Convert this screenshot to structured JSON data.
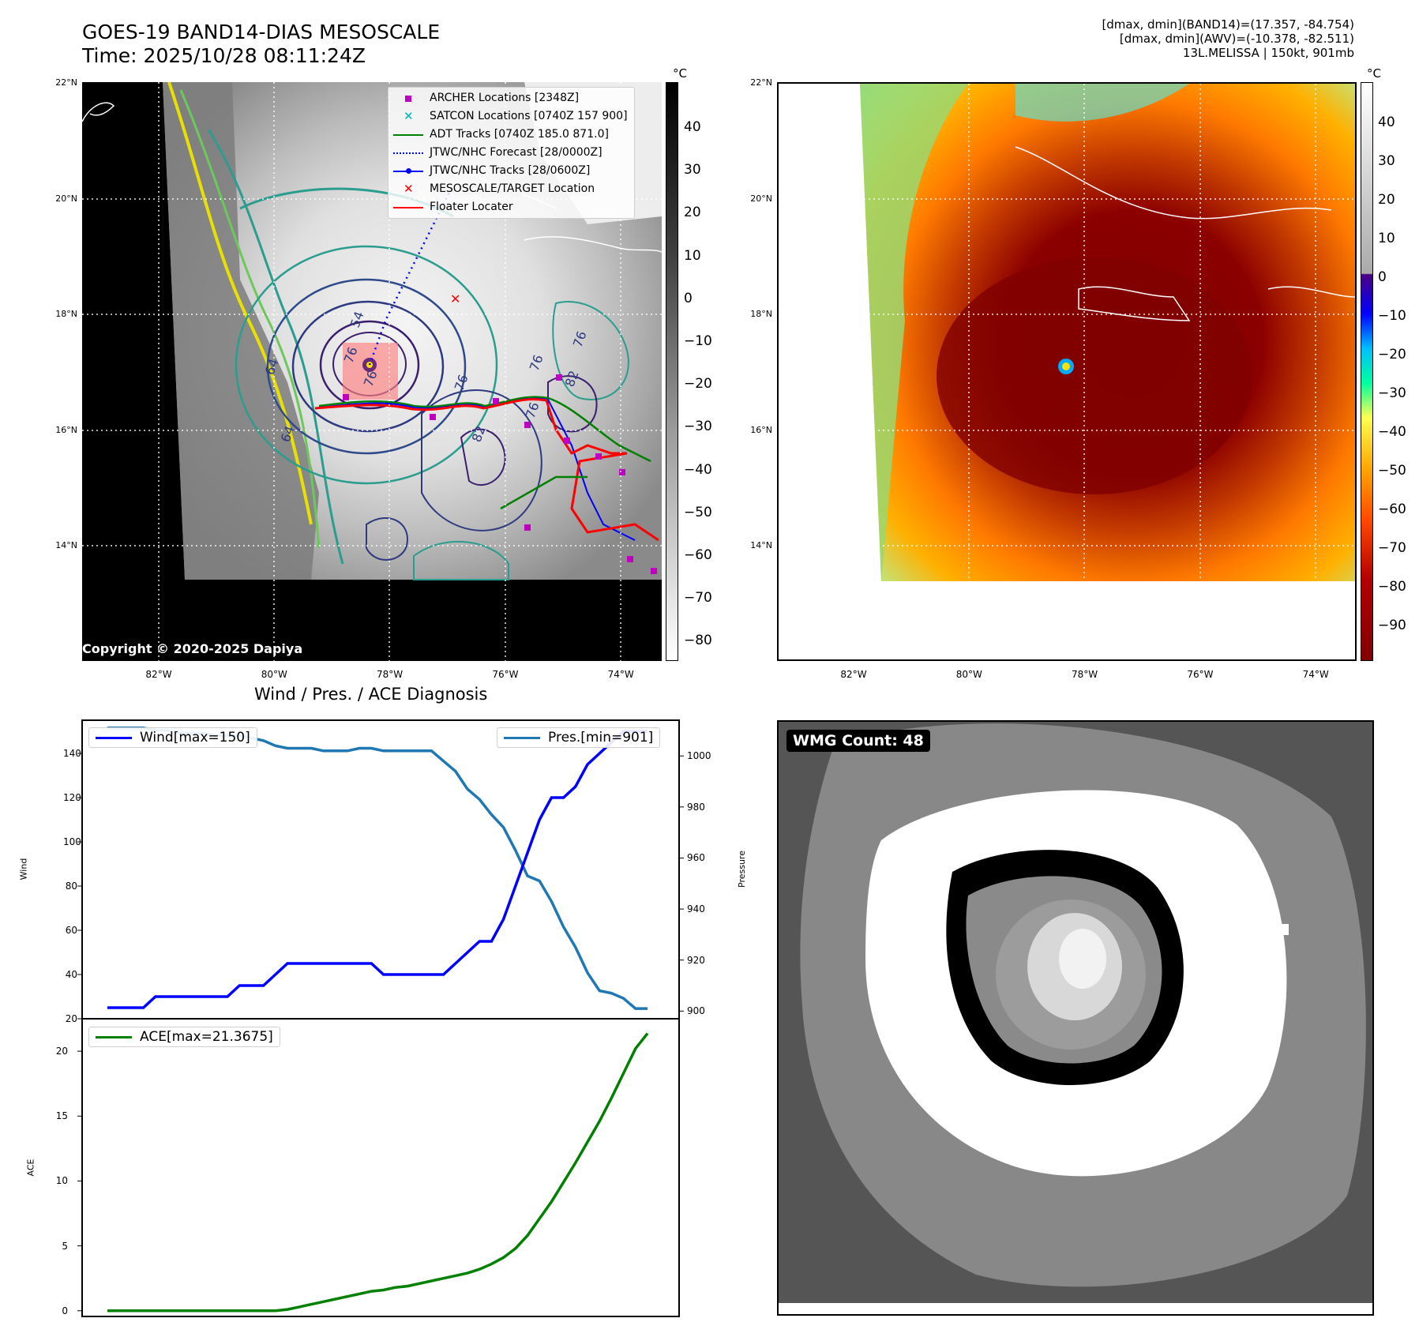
{
  "header": {
    "title_line1": "GOES-19 BAND14-DIAS MESOSCALE",
    "title_line2": "Time: 2025/10/28 08:11:24Z",
    "info_line1": "[dmax, dmin](BAND14)=(17.357, -84.754)",
    "info_line2": "[dmax, dmin](AWV)=(-10.378, -82.511)",
    "info_line3": "13L.MELISSA | 150kt, 901mb"
  },
  "map_left": {
    "lat_labels": [
      "22°N",
      "20°N",
      "18°N",
      "16°N",
      "14°N"
    ],
    "lon_labels": [
      "82°W",
      "80°W",
      "78°W",
      "76°W",
      "74°W"
    ],
    "colorbar_unit": "°C",
    "colorbar_ticks": [
      "40",
      "30",
      "20",
      "10",
      "0",
      "−10",
      "−20",
      "−30",
      "−40",
      "−50",
      "−60",
      "−70",
      "−80"
    ],
    "contour_labels": [
      "54",
      "76",
      "76",
      "76",
      "64",
      "64",
      "76",
      "76",
      "82",
      "76",
      "82"
    ],
    "legend": [
      {
        "label": "ARCHER Locations [2348Z]",
        "symbol": "square",
        "color": "#c000c0"
      },
      {
        "label": "SATCON Locations [0740Z 157 900]",
        "symbol": "x",
        "color": "#00b5b5"
      },
      {
        "label": "ADT Tracks [0740Z 185.0 871.0]",
        "symbol": "line",
        "color": "#008000"
      },
      {
        "label": "JTWC/NHC Forecast [28/0000Z]",
        "symbol": "dotted",
        "color": "#0000ff"
      },
      {
        "label": "JTWC/NHC Tracks [28/0600Z]",
        "symbol": "line-dot",
        "color": "#0000ff"
      },
      {
        "label": "MESOSCALE/TARGET Location",
        "symbol": "x",
        "color": "#ff0000"
      },
      {
        "label": "Floater Locater",
        "symbol": "line",
        "color": "#ff0000"
      }
    ],
    "copyright": "Copyright © 2020-2025 Dapiya"
  },
  "map_right": {
    "lat_labels": [
      "22°N",
      "20°N",
      "18°N",
      "16°N",
      "14°N"
    ],
    "lon_labels": [
      "82°W",
      "80°W",
      "78°W",
      "76°W",
      "74°W"
    ],
    "colorbar_unit": "°C",
    "colorbar_ticks": [
      "40",
      "30",
      "20",
      "10",
      "0",
      "−10",
      "−20",
      "−30",
      "−40",
      "−50",
      "−60",
      "−70",
      "−80",
      "−90"
    ]
  },
  "wmg": {
    "label": "WMG Count: 48"
  },
  "chart_data": [
    {
      "type": "line",
      "title": "Wind / Pres. / ACE Diagnosis",
      "x": [
        0,
        1,
        2,
        3,
        4,
        5,
        6,
        7,
        8,
        9,
        10,
        11,
        12,
        13,
        14,
        15,
        16,
        17,
        18,
        19,
        20,
        21,
        22,
        23,
        24,
        25,
        26,
        27,
        28,
        29,
        30,
        31,
        32,
        33,
        34,
        35,
        36,
        37,
        38,
        39,
        40,
        41,
        42,
        43,
        44,
        45
      ],
      "series": [
        {
          "name": "Wind[max=150]",
          "axis": "left",
          "color": "#0000ff",
          "values": [
            25,
            25,
            25,
            25,
            30,
            30,
            30,
            30,
            30,
            30,
            30,
            35,
            35,
            35,
            40,
            45,
            45,
            45,
            45,
            45,
            45,
            45,
            45,
            40,
            40,
            40,
            40,
            40,
            40,
            45,
            50,
            55,
            55,
            65,
            80,
            95,
            110,
            120,
            120,
            125,
            135,
            140,
            145,
            150,
            150,
            150
          ]
        },
        {
          "name": "Pres.[min=901]",
          "axis": "right",
          "color": "#1f77b4",
          "values": [
            1011,
            1011,
            1011,
            1011,
            1010,
            1010,
            1009,
            1009,
            1009,
            1008,
            1008,
            1008,
            1007,
            1006,
            1004,
            1003,
            1003,
            1003,
            1002,
            1002,
            1002,
            1003,
            1003,
            1002,
            1002,
            1002,
            1002,
            1002,
            998,
            994,
            987,
            983,
            977,
            972,
            963,
            953,
            951,
            943,
            933,
            925,
            915,
            908,
            907,
            905,
            901,
            901
          ]
        }
      ],
      "ylabel": "Wind",
      "y2label": "Pressure",
      "ylim": [
        20,
        155
      ],
      "y2lim": [
        897,
        1014
      ],
      "yticks": [
        "140",
        "120",
        "100",
        "80",
        "60",
        "40",
        "20"
      ],
      "y2ticks": [
        "1000",
        "980",
        "960",
        "940",
        "920",
        "900"
      ]
    },
    {
      "type": "line",
      "series": [
        {
          "name": "ACE[max=21.3675]",
          "color": "#008000",
          "values": [
            0,
            0,
            0,
            0,
            0,
            0,
            0,
            0,
            0,
            0,
            0,
            0,
            0,
            0,
            0,
            0.1,
            0.3,
            0.5,
            0.7,
            0.9,
            1.1,
            1.3,
            1.5,
            1.6,
            1.8,
            1.9,
            2.1,
            2.3,
            2.5,
            2.7,
            2.9,
            3.2,
            3.6,
            4.1,
            4.8,
            5.8,
            7.1,
            8.4,
            9.9,
            11.4,
            13.0,
            14.6,
            16.4,
            18.3,
            20.2,
            21.37
          ]
        }
      ],
      "ylabel": "ACE",
      "ylim": [
        -0.5,
        22.5
      ],
      "yticks": [
        "20",
        "15",
        "10",
        "5",
        "0"
      ]
    }
  ],
  "colors": {
    "wind": "#0000ff",
    "pressure": "#1f77b4",
    "ace": "#008000",
    "floater": "#ff0000"
  }
}
